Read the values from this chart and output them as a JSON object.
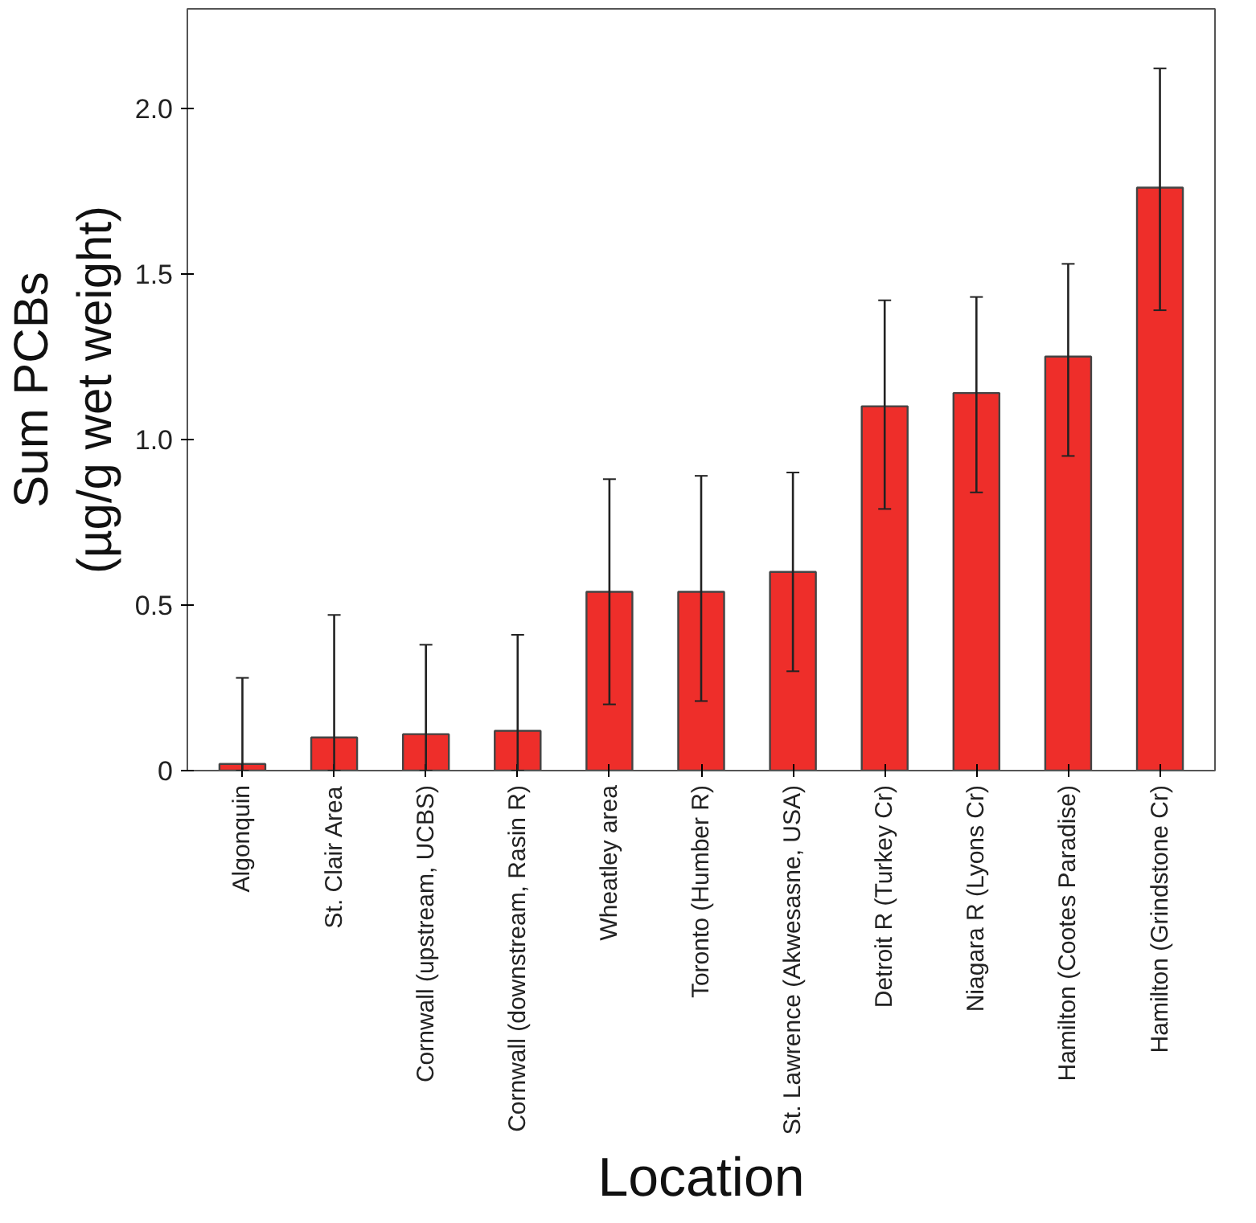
{
  "chart_data": {
    "type": "bar",
    "xlabel": "Location",
    "ylabel": "Sum PCBs\n(µg/g wet weight)",
    "categories": [
      "Algonquin",
      "St. Clair Area",
      "Cornwall (upstream, UCBS)",
      "Cornwall (downstream, Rasin R)",
      "Wheatley area",
      "Toronto (Humber R)",
      "St. Lawrence (Akwesasne, USA)",
      "Detroit R (Turkey Cr)",
      "Niagara R (Lyons Cr)",
      "Hamilton (Cootes Paradise)",
      "Hamilton (Grindstone Cr)"
    ],
    "values": [
      0.02,
      0.1,
      0.11,
      0.12,
      0.54,
      0.54,
      0.6,
      1.1,
      1.14,
      1.25,
      1.76
    ],
    "errors": [
      [
        0,
        0.28
      ],
      [
        0,
        0.47
      ],
      [
        0,
        0.38
      ],
      [
        0,
        0.41
      ],
      [
        0.2,
        0.88
      ],
      [
        0.21,
        0.89
      ],
      [
        0.3,
        0.9
      ],
      [
        0.79,
        1.42
      ],
      [
        0.84,
        1.43
      ],
      [
        0.95,
        1.53
      ],
      [
        1.39,
        2.12
      ]
    ],
    "color": "#ee2e2a",
    "ylim": [
      0,
      2.3
    ],
    "yticks": [
      {
        "value": 0,
        "label": "0"
      },
      {
        "value": 0.5,
        "label": "0.5"
      },
      {
        "value": 1.0,
        "label": "1.0"
      },
      {
        "value": 1.5,
        "label": "1.5"
      },
      {
        "value": 2.0,
        "label": "2.0"
      }
    ],
    "grid": false
  }
}
